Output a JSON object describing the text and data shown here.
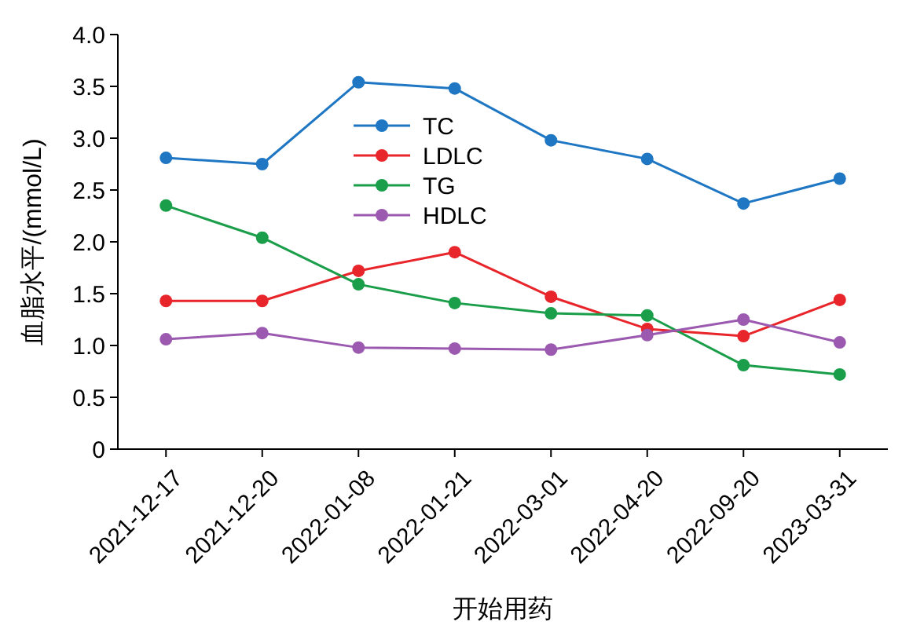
{
  "chart_data": {
    "type": "line",
    "xlabel": "开始用药",
    "ylabel": "血脂水平/(mmol/L)",
    "categories": [
      "2021-12-17",
      "2021-12-20",
      "2022-01-08",
      "2022-01-21",
      "2022-03-01",
      "2022-04-20",
      "2022-09-20",
      "2023-03-31"
    ],
    "series": [
      {
        "name": "TC",
        "color": "#1f77c4",
        "values": [
          2.81,
          2.75,
          3.54,
          3.48,
          2.98,
          2.8,
          2.37,
          2.61
        ]
      },
      {
        "name": "LDLC",
        "color": "#e8252a",
        "values": [
          1.43,
          1.43,
          1.72,
          1.9,
          1.47,
          1.16,
          1.09,
          1.44
        ]
      },
      {
        "name": "TG",
        "color": "#1a9e4a",
        "values": [
          2.35,
          2.04,
          1.59,
          1.41,
          1.31,
          1.29,
          0.81,
          0.72
        ]
      },
      {
        "name": "HDLC",
        "color": "#9b59b0",
        "values": [
          1.06,
          1.12,
          0.98,
          0.97,
          0.96,
          1.1,
          1.25,
          1.03
        ]
      }
    ],
    "ylim": [
      0,
      4
    ],
    "yticks": [
      {
        "value": 0,
        "label": "0"
      },
      {
        "value": 0.5,
        "label": "0.5"
      },
      {
        "value": 1,
        "label": "1.0"
      },
      {
        "value": 1.5,
        "label": "1.5"
      },
      {
        "value": 2,
        "label": "2.0"
      },
      {
        "value": 2.5,
        "label": "2.5"
      },
      {
        "value": 3,
        "label": "3.0"
      },
      {
        "value": 3.5,
        "label": "3.5"
      },
      {
        "value": 4,
        "label": "4.0"
      }
    ],
    "legend": "top",
    "marker": "circle",
    "line_style": "solid",
    "grid": false
  }
}
